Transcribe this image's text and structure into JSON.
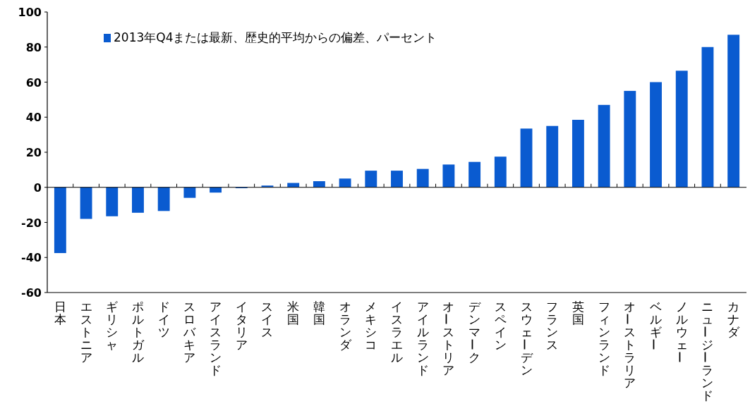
{
  "chart_data": {
    "type": "bar",
    "categories": [
      "日本",
      "エストニア",
      "ギリシャ",
      "ポルトガル",
      "ドイツ",
      "スロバキア",
      "アイスランド",
      "イタリア",
      "スイス",
      "米国",
      "韓国",
      "オランダ",
      "メキシコ",
      "イスラエル",
      "アイルランド",
      "オーストリア",
      "デンマーク",
      "スペイン",
      "スウェーデン",
      "フランス",
      "英国",
      "フィンランド",
      "オーストラリア",
      "ベルギー",
      "ノルウェー",
      "ニュージーランド",
      "カナダ"
    ],
    "series": [
      {
        "name": "2013年Q4または最新、歴史的平均からの偏差、パーセント",
        "color": "#0a5bd0",
        "values": [
          -37.5,
          -18,
          -16.5,
          -14.5,
          -13.5,
          -6,
          -3,
          -0.5,
          1,
          2.5,
          3.5,
          5,
          9.5,
          9.5,
          10.5,
          13,
          14.5,
          17.5,
          33.5,
          35,
          38.5,
          47,
          55,
          60,
          66.5,
          80,
          87
        ]
      }
    ],
    "ylim": [
      -60,
      100
    ],
    "yticks": [
      -60,
      -40,
      -20,
      0,
      20,
      40,
      60,
      80,
      100
    ],
    "grid": false,
    "ref_lines": [
      {
        "axis": "y",
        "value": 0
      }
    ],
    "legend": "top left"
  }
}
